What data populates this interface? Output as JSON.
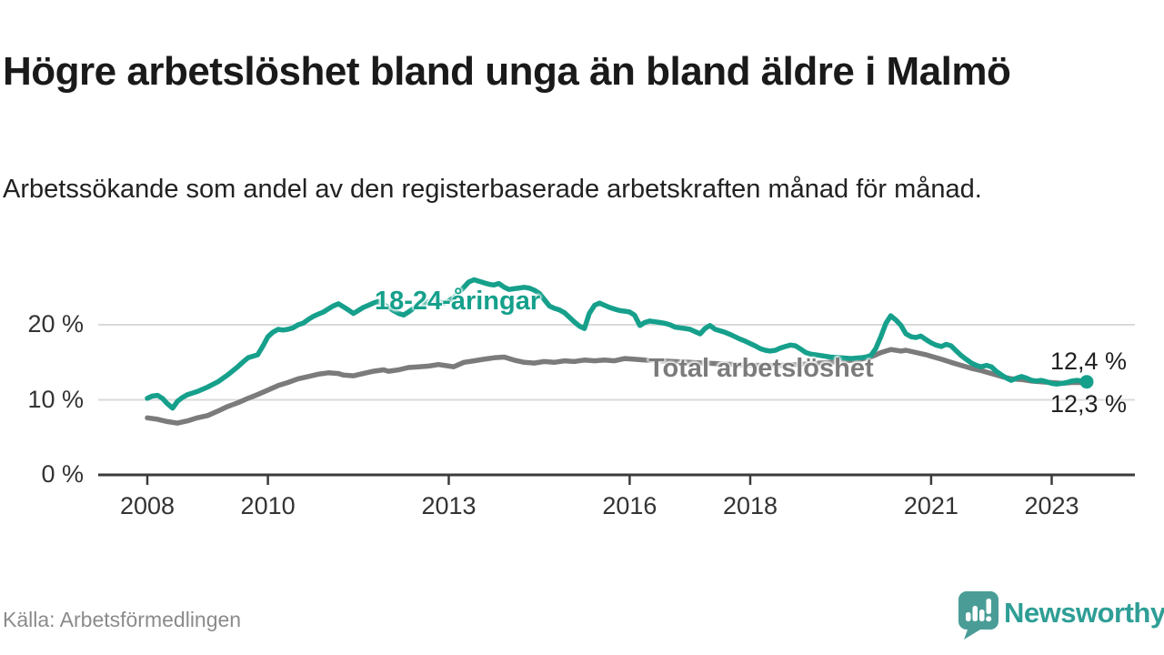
{
  "header": {
    "title": "Högre arbetslöshet bland unga än bland äldre i Malmö",
    "subtitle": "Arbetssökande som andel av den registerbaserade arbetskraften månad för månad."
  },
  "source": {
    "label": "Källa: Arbetsförmedlingen"
  },
  "branding": {
    "name": "Newsworthy",
    "logo_icon": "speech-bubble-bar-chart-icon",
    "color": "#2E9E96"
  },
  "colors": {
    "youth_line": "#16A08C",
    "total_line": "#7B7B7B",
    "grid": "#DADADA",
    "axis": "#3B3B3B",
    "text": "#1A1A1A",
    "muted_text": "#8B8B8B"
  },
  "chart_data": {
    "type": "line",
    "title": "Högre arbetslöshet bland unga än bland äldre i Malmö",
    "xlabel": "",
    "ylabel": "Arbetssökande som andel av den registerbaserade arbetskraften",
    "x_unit": "year (monthly observations)",
    "x_range": [
      2008.0,
      2023.58
    ],
    "ylim": [
      0,
      28
    ],
    "grid": "horizontal",
    "legend_position": "inline-labels",
    "y_ticks": [
      {
        "v": 0,
        "label": "0 %"
      },
      {
        "v": 10,
        "label": "10 %"
      },
      {
        "v": 20,
        "label": "20 %"
      }
    ],
    "x_ticks": [
      {
        "v": 2008,
        "label": "2008"
      },
      {
        "v": 2010,
        "label": "2010"
      },
      {
        "v": 2013,
        "label": "2013"
      },
      {
        "v": 2016,
        "label": "2016"
      },
      {
        "v": 2018,
        "label": "2018"
      },
      {
        "v": 2021,
        "label": "2021"
      },
      {
        "v": 2023,
        "label": "2023"
      }
    ],
    "series": [
      {
        "name": "Total arbetslöshet",
        "color": "#7B7B7B",
        "end_value_label": "12,3 %",
        "points": [
          [
            2008.0,
            7.6
          ],
          [
            2008.17,
            7.4
          ],
          [
            2008.33,
            7.1
          ],
          [
            2008.5,
            6.9
          ],
          [
            2008.67,
            7.2
          ],
          [
            2008.83,
            7.6
          ],
          [
            2009.0,
            7.9
          ],
          [
            2009.17,
            8.5
          ],
          [
            2009.33,
            9.1
          ],
          [
            2009.5,
            9.6
          ],
          [
            2009.67,
            10.2
          ],
          [
            2009.83,
            10.7
          ],
          [
            2010.0,
            11.3
          ],
          [
            2010.17,
            11.9
          ],
          [
            2010.33,
            12.3
          ],
          [
            2010.5,
            12.8
          ],
          [
            2010.67,
            13.1
          ],
          [
            2010.83,
            13.4
          ],
          [
            2011.0,
            13.6
          ],
          [
            2011.17,
            13.5
          ],
          [
            2011.25,
            13.3
          ],
          [
            2011.42,
            13.2
          ],
          [
            2011.58,
            13.5
          ],
          [
            2011.75,
            13.8
          ],
          [
            2011.92,
            14.0
          ],
          [
            2012.0,
            13.8
          ],
          [
            2012.17,
            14.0
          ],
          [
            2012.33,
            14.3
          ],
          [
            2012.5,
            14.4
          ],
          [
            2012.67,
            14.5
          ],
          [
            2012.83,
            14.7
          ],
          [
            2013.0,
            14.5
          ],
          [
            2013.08,
            14.4
          ],
          [
            2013.25,
            15.0
          ],
          [
            2013.42,
            15.2
          ],
          [
            2013.58,
            15.4
          ],
          [
            2013.75,
            15.6
          ],
          [
            2013.92,
            15.7
          ],
          [
            2014.08,
            15.3
          ],
          [
            2014.25,
            15.0
          ],
          [
            2014.42,
            14.9
          ],
          [
            2014.58,
            15.1
          ],
          [
            2014.75,
            15.0
          ],
          [
            2014.92,
            15.2
          ],
          [
            2015.08,
            15.1
          ],
          [
            2015.25,
            15.3
          ],
          [
            2015.42,
            15.2
          ],
          [
            2015.58,
            15.3
          ],
          [
            2015.75,
            15.2
          ],
          [
            2015.92,
            15.5
          ],
          [
            2016.08,
            15.4
          ],
          [
            2016.25,
            15.3
          ],
          [
            2016.5,
            15.2
          ],
          [
            2017.0,
            15.0
          ],
          [
            2017.5,
            14.8
          ],
          [
            2018.0,
            14.6
          ],
          [
            2018.5,
            14.6
          ],
          [
            2019.0,
            14.8
          ],
          [
            2019.5,
            15.1
          ],
          [
            2019.83,
            15.4
          ],
          [
            2020.0,
            15.7
          ],
          [
            2020.17,
            16.3
          ],
          [
            2020.33,
            16.7
          ],
          [
            2020.5,
            16.5
          ],
          [
            2020.58,
            16.6
          ],
          [
            2020.75,
            16.3
          ],
          [
            2020.92,
            16.0
          ],
          [
            2021.0,
            15.8
          ],
          [
            2021.17,
            15.4
          ],
          [
            2021.33,
            15.0
          ],
          [
            2021.5,
            14.6
          ],
          [
            2021.67,
            14.2
          ],
          [
            2021.83,
            13.9
          ],
          [
            2022.0,
            13.5
          ],
          [
            2022.17,
            13.1
          ],
          [
            2022.33,
            12.8
          ],
          [
            2022.5,
            12.7
          ],
          [
            2022.67,
            12.5
          ],
          [
            2022.83,
            12.4
          ],
          [
            2023.0,
            12.3
          ],
          [
            2023.17,
            12.2
          ],
          [
            2023.33,
            12.3
          ],
          [
            2023.5,
            12.3
          ],
          [
            2023.58,
            12.3
          ]
        ]
      },
      {
        "name": "18-24-åringar",
        "color": "#16A08C",
        "end_dot": true,
        "end_value_label": "12,4 %",
        "points": [
          [
            2008.0,
            10.2
          ],
          [
            2008.08,
            10.5
          ],
          [
            2008.17,
            10.6
          ],
          [
            2008.25,
            10.2
          ],
          [
            2008.33,
            9.5
          ],
          [
            2008.42,
            8.9
          ],
          [
            2008.5,
            9.8
          ],
          [
            2008.58,
            10.3
          ],
          [
            2008.67,
            10.7
          ],
          [
            2008.83,
            11.1
          ],
          [
            2009.0,
            11.7
          ],
          [
            2009.17,
            12.4
          ],
          [
            2009.33,
            13.3
          ],
          [
            2009.5,
            14.4
          ],
          [
            2009.58,
            15.0
          ],
          [
            2009.67,
            15.6
          ],
          [
            2009.75,
            15.8
          ],
          [
            2009.83,
            16.0
          ],
          [
            2009.92,
            17.2
          ],
          [
            2010.0,
            18.4
          ],
          [
            2010.08,
            19.0
          ],
          [
            2010.17,
            19.4
          ],
          [
            2010.25,
            19.3
          ],
          [
            2010.33,
            19.4
          ],
          [
            2010.42,
            19.6
          ],
          [
            2010.5,
            20.0
          ],
          [
            2010.58,
            20.2
          ],
          [
            2010.67,
            20.7
          ],
          [
            2010.75,
            21.1
          ],
          [
            2010.83,
            21.4
          ],
          [
            2010.92,
            21.7
          ],
          [
            2011.0,
            22.1
          ],
          [
            2011.08,
            22.5
          ],
          [
            2011.17,
            22.8
          ],
          [
            2011.25,
            22.4
          ],
          [
            2011.33,
            22.0
          ],
          [
            2011.42,
            21.5
          ],
          [
            2011.5,
            21.9
          ],
          [
            2011.58,
            22.3
          ],
          [
            2011.67,
            22.6
          ],
          [
            2011.75,
            22.9
          ],
          [
            2011.83,
            23.1
          ],
          [
            2011.92,
            22.7
          ],
          [
            2012.0,
            22.3
          ],
          [
            2012.08,
            21.9
          ],
          [
            2012.17,
            21.5
          ],
          [
            2012.25,
            21.3
          ],
          [
            2012.33,
            21.7
          ],
          [
            2012.42,
            22.2
          ],
          [
            2012.5,
            22.6
          ],
          [
            2012.58,
            22.9
          ],
          [
            2012.67,
            23.1
          ],
          [
            2012.75,
            23.3
          ],
          [
            2012.83,
            23.1
          ],
          [
            2012.92,
            22.9
          ],
          [
            2013.0,
            23.2
          ],
          [
            2013.08,
            23.6
          ],
          [
            2013.17,
            24.3
          ],
          [
            2013.25,
            25.0
          ],
          [
            2013.33,
            25.7
          ],
          [
            2013.42,
            26.0
          ],
          [
            2013.5,
            25.8
          ],
          [
            2013.58,
            25.6
          ],
          [
            2013.67,
            25.4
          ],
          [
            2013.75,
            25.3
          ],
          [
            2013.83,
            25.5
          ],
          [
            2013.92,
            25.0
          ],
          [
            2014.0,
            24.7
          ],
          [
            2014.08,
            24.8
          ],
          [
            2014.17,
            24.9
          ],
          [
            2014.25,
            25.0
          ],
          [
            2014.33,
            24.9
          ],
          [
            2014.42,
            24.6
          ],
          [
            2014.5,
            24.2
          ],
          [
            2014.58,
            23.4
          ],
          [
            2014.67,
            22.5
          ],
          [
            2014.75,
            22.2
          ],
          [
            2014.83,
            22.0
          ],
          [
            2014.92,
            21.6
          ],
          [
            2015.0,
            21.0
          ],
          [
            2015.08,
            20.4
          ],
          [
            2015.17,
            19.8
          ],
          [
            2015.25,
            19.5
          ],
          [
            2015.33,
            21.5
          ],
          [
            2015.42,
            22.6
          ],
          [
            2015.5,
            22.9
          ],
          [
            2015.58,
            22.6
          ],
          [
            2015.67,
            22.3
          ],
          [
            2015.75,
            22.1
          ],
          [
            2015.83,
            21.9
          ],
          [
            2015.92,
            21.8
          ],
          [
            2016.0,
            21.7
          ],
          [
            2016.08,
            21.3
          ],
          [
            2016.17,
            19.9
          ],
          [
            2016.25,
            20.3
          ],
          [
            2016.33,
            20.5
          ],
          [
            2016.42,
            20.4
          ],
          [
            2016.5,
            20.3
          ],
          [
            2016.58,
            20.2
          ],
          [
            2016.67,
            20.0
          ],
          [
            2016.75,
            19.7
          ],
          [
            2016.83,
            19.6
          ],
          [
            2016.92,
            19.5
          ],
          [
            2017.0,
            19.4
          ],
          [
            2017.08,
            19.1
          ],
          [
            2017.17,
            18.8
          ],
          [
            2017.25,
            19.5
          ],
          [
            2017.33,
            19.9
          ],
          [
            2017.42,
            19.4
          ],
          [
            2017.5,
            19.2
          ],
          [
            2017.58,
            19.0
          ],
          [
            2017.67,
            18.7
          ],
          [
            2017.75,
            18.4
          ],
          [
            2017.83,
            18.1
          ],
          [
            2017.92,
            17.8
          ],
          [
            2018.0,
            17.5
          ],
          [
            2018.08,
            17.2
          ],
          [
            2018.17,
            16.8
          ],
          [
            2018.25,
            16.6
          ],
          [
            2018.33,
            16.5
          ],
          [
            2018.42,
            16.6
          ],
          [
            2018.5,
            16.9
          ],
          [
            2018.58,
            17.1
          ],
          [
            2018.67,
            17.3
          ],
          [
            2018.75,
            17.2
          ],
          [
            2018.83,
            16.8
          ],
          [
            2018.92,
            16.3
          ],
          [
            2019.0,
            16.1
          ],
          [
            2019.17,
            15.9
          ],
          [
            2019.33,
            15.7
          ],
          [
            2019.5,
            15.6
          ],
          [
            2019.67,
            15.5
          ],
          [
            2019.83,
            15.6
          ],
          [
            2019.92,
            15.7
          ],
          [
            2020.0,
            15.9
          ],
          [
            2020.08,
            16.8
          ],
          [
            2020.17,
            18.5
          ],
          [
            2020.25,
            20.2
          ],
          [
            2020.33,
            21.2
          ],
          [
            2020.42,
            20.6
          ],
          [
            2020.5,
            19.9
          ],
          [
            2020.58,
            18.8
          ],
          [
            2020.67,
            18.4
          ],
          [
            2020.75,
            18.3
          ],
          [
            2020.83,
            18.5
          ],
          [
            2020.92,
            18.0
          ],
          [
            2021.0,
            17.6
          ],
          [
            2021.08,
            17.3
          ],
          [
            2021.17,
            17.1
          ],
          [
            2021.25,
            17.4
          ],
          [
            2021.33,
            17.2
          ],
          [
            2021.42,
            16.5
          ],
          [
            2021.5,
            15.9
          ],
          [
            2021.58,
            15.4
          ],
          [
            2021.67,
            14.9
          ],
          [
            2021.75,
            14.6
          ],
          [
            2021.83,
            14.4
          ],
          [
            2021.92,
            14.6
          ],
          [
            2022.0,
            14.4
          ],
          [
            2022.08,
            13.8
          ],
          [
            2022.17,
            13.3
          ],
          [
            2022.25,
            12.9
          ],
          [
            2022.33,
            12.6
          ],
          [
            2022.42,
            12.9
          ],
          [
            2022.5,
            13.1
          ],
          [
            2022.58,
            12.9
          ],
          [
            2022.67,
            12.6
          ],
          [
            2022.75,
            12.5
          ],
          [
            2022.83,
            12.6
          ],
          [
            2022.92,
            12.4
          ],
          [
            2023.0,
            12.2
          ],
          [
            2023.08,
            12.1
          ],
          [
            2023.17,
            12.2
          ],
          [
            2023.25,
            12.3
          ],
          [
            2023.33,
            12.5
          ],
          [
            2023.42,
            12.6
          ],
          [
            2023.5,
            12.5
          ],
          [
            2023.58,
            12.4
          ]
        ]
      }
    ],
    "end_labels": [
      {
        "series": "18-24-åringar",
        "label": "12,4 %"
      },
      {
        "series": "Total arbetslöshet",
        "label": "12,3 %"
      }
    ]
  }
}
